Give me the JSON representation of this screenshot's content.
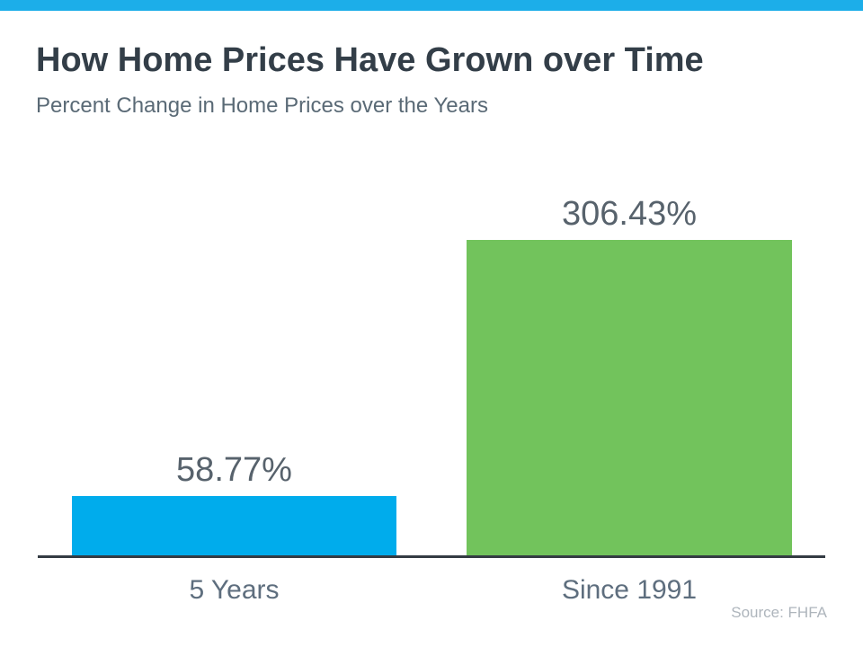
{
  "header": {
    "title": "How Home Prices Have Grown over Time",
    "subtitle": "Percent Change in Home Prices over the Years"
  },
  "chart_data": {
    "type": "bar",
    "title": "How Home Prices Have Grown over Time",
    "subtitle": "Percent Change in Home Prices over the Years",
    "categories": [
      "5 Years",
      "Since 1991"
    ],
    "values": [
      58.77,
      306.43
    ],
    "value_labels": [
      "58.77%",
      "306.43%"
    ],
    "bar_colors": [
      "#00ACEC",
      "#72C35C"
    ],
    "xlabel": "",
    "ylabel": "",
    "y_axis_visible": false,
    "x_axis_line_visible": true,
    "grid": false,
    "legend": null,
    "data_labels_position": "above-bar"
  },
  "footer": {
    "source": "Source: FHFA"
  },
  "colors": {
    "banner": "#1CAEE9",
    "bar_blue": "#00ACEC",
    "bar_green": "#72C35C",
    "title_text": "#333E48",
    "subtitle_text": "#5A6A76",
    "value_text": "#57626C",
    "category_text": "#5E6E7E",
    "axis_line": "#343B43",
    "source_text": "#AEB5BC",
    "background": "#FFFFFF"
  }
}
